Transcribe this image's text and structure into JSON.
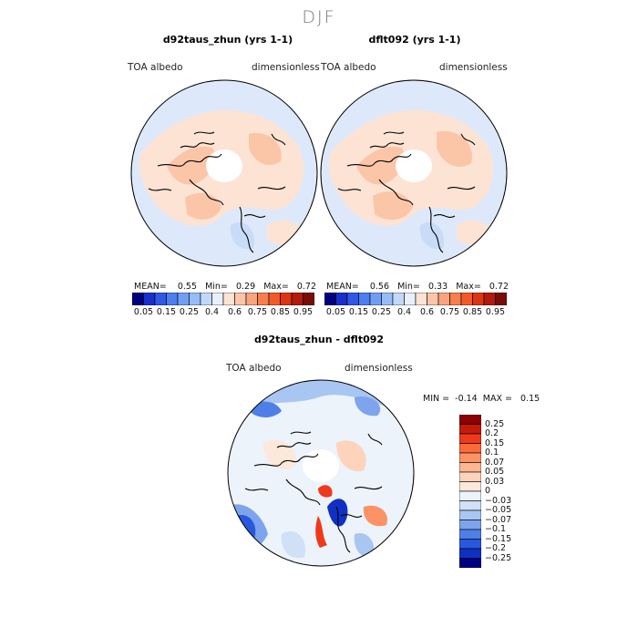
{
  "figure_title": "DJF",
  "panels": [
    {
      "title": "d92taus_zhun (yrs 1-1)",
      "left_label": "TOA  albedo",
      "right_label": "dimensionless",
      "stats": {
        "mean_label": "MEAN=",
        "mean": "0.55",
        "min_label": "Min=",
        "min": "0.29",
        "max_label": "Max=",
        "max": "0.72"
      }
    },
    {
      "title": "dflt092 (yrs 1-1)",
      "left_label": "TOA  albedo",
      "right_label": "dimensionless",
      "stats": {
        "mean_label": "MEAN=",
        "mean": "0.56",
        "min_label": "Min=",
        "min": "0.33",
        "max_label": "Max=",
        "max": "0.72"
      }
    }
  ],
  "colorbar_top": {
    "colors": [
      "#000080",
      "#1a2ecc",
      "#2f58e6",
      "#4b7ef0",
      "#6f9ef4",
      "#97bdf8",
      "#c2d8fb",
      "#e8f0fb",
      "#fde3d3",
      "#fbc5a8",
      "#f9a47c",
      "#f77e4d",
      "#f25a28",
      "#dc3512",
      "#b31a0c",
      "#7a0b08"
    ],
    "tick_labels": [
      "0.05",
      "0.15",
      "0.25",
      "0.4",
      "0.6",
      "0.75",
      "0.85",
      "0.95"
    ]
  },
  "diff_panel": {
    "title": "d92taus_zhun - dflt092",
    "left_label": "TOA  albedo",
    "right_label": "dimensionless",
    "min_label": "MIN =",
    "min": "-0.14",
    "max_label": "MAX =",
    "max": "0.15"
  },
  "colorbar_diff": {
    "colors": [
      "#8b0000",
      "#c41a0a",
      "#ee3a1a",
      "#fb6a3a",
      "#fc9366",
      "#fdb691",
      "#fed3bc",
      "#fee7db",
      "#ecf3fb",
      "#cfe0f7",
      "#a9c6f2",
      "#7da4ec",
      "#4f7fe6",
      "#2a58dc",
      "#1030c4",
      "#000080"
    ],
    "tick_labels": [
      "0.25",
      "0.2",
      "0.15",
      "0.1",
      "0.07",
      "0.05",
      "0.03",
      "0",
      "−0.03",
      "−0.05",
      "−0.07",
      "−0.1",
      "−0.15",
      "−0.2",
      "−0.25"
    ]
  },
  "map_colors": {
    "background": "#dde9fb",
    "warm_light": "#fde3d3",
    "warm_mid": "#fbc5a8",
    "cool_light": "#c8dcf8",
    "pole": "#ffffff",
    "coast": "#000000",
    "diff_blue": "#4b7ef0",
    "diff_darkblue": "#1a2ecc",
    "diff_red": "#ee3a1a"
  }
}
